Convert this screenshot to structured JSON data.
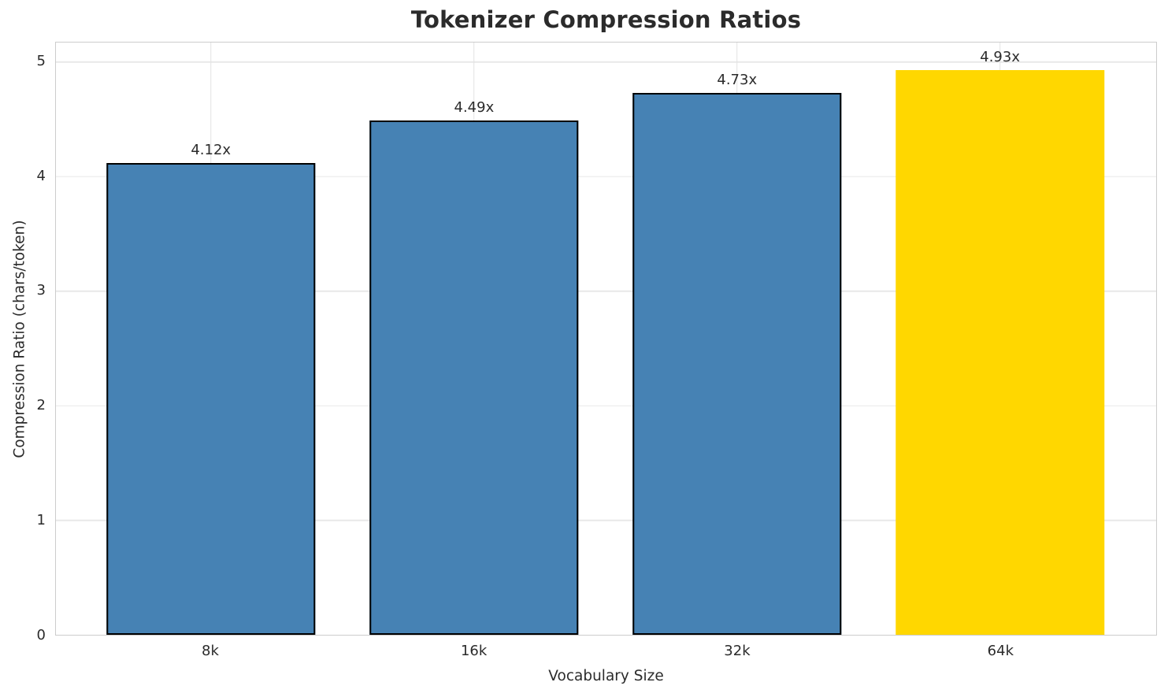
{
  "chart_data": {
    "type": "bar",
    "title": "Tokenizer Compression Ratios",
    "xlabel": "Vocabulary Size",
    "ylabel": "Compression Ratio (chars/token)",
    "categories": [
      "8k",
      "16k",
      "32k",
      "64k"
    ],
    "values": [
      4.12,
      4.49,
      4.73,
      4.93
    ],
    "bar_labels": [
      "4.12x",
      "4.49x",
      "4.73x",
      "4.93x"
    ],
    "bar_colors": [
      "#4682B4",
      "#4682B4",
      "#4682B4",
      "#FFD700"
    ],
    "bar_edge_colors": [
      "#000000",
      "#000000",
      "#000000",
      "none"
    ],
    "highlighted_category": "64k",
    "yticks": [
      "0",
      "1",
      "2",
      "3",
      "4",
      "5"
    ],
    "ylim": [
      0,
      5.17
    ],
    "grid": "on",
    "legend": "none",
    "layout": {
      "x_centers_pct": [
        14.08,
        38.0,
        61.9,
        85.8
      ],
      "bar_width_pct": 19.0
    }
  },
  "colors": {
    "bar_blue": "#4682B4",
    "bar_gold": "#FFD700",
    "bar_edge": "#000000",
    "text": "#2b2b2b",
    "grid": "#e8e8e8",
    "spine": "#cccccc",
    "background": "#ffffff"
  }
}
